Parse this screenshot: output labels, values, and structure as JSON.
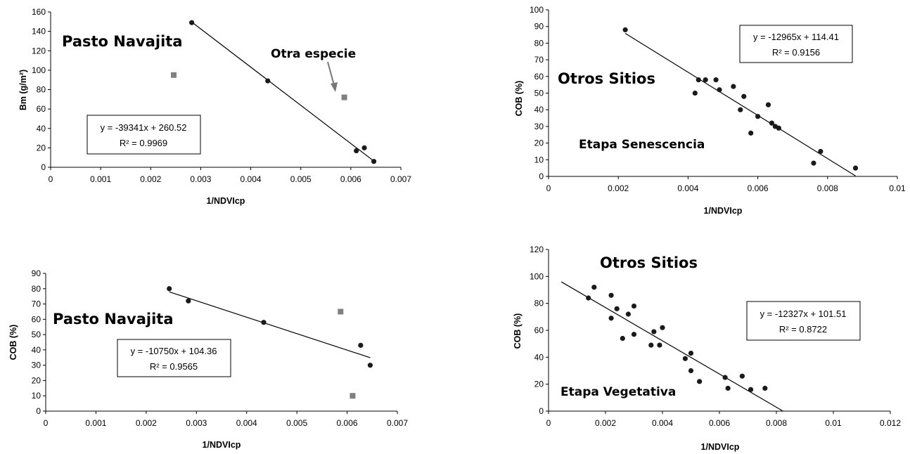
{
  "chart_data": [
    {
      "type": "scatter",
      "xlabel": "1/NDVIcp",
      "ylabel": "Bm (g/m²)",
      "xlim": [
        0,
        0.007
      ],
      "ylim": [
        0,
        160
      ],
      "xticks": [
        "0",
        "0.001",
        "0.002",
        "0.003",
        "0.004",
        "0.005",
        "0.006",
        "0.007"
      ],
      "yticks": [
        "0",
        "20",
        "40",
        "60",
        "80",
        "100",
        "120",
        "140",
        "160"
      ],
      "grid": false,
      "annotations": [
        "Pasto Navajita",
        "Otra especie"
      ],
      "equation": "y = -39341x + 260.52",
      "r2": "R² = 0.9969",
      "trendline": {
        "slope": -39341,
        "intercept": 260.52,
        "x_range": [
          0.00282,
          0.00646
        ]
      },
      "series": [
        {
          "marker": "circle",
          "x": [
            0.00282,
            0.00434,
            0.00611,
            0.00627,
            0.00646
          ],
          "y": [
            149,
            89,
            17,
            20,
            6
          ]
        },
        {
          "marker": "square",
          "x": [
            0.00246,
            0.00587
          ],
          "y": [
            95,
            72
          ]
        }
      ]
    },
    {
      "type": "scatter",
      "xlabel": "1/NDVIcp",
      "ylabel": "COB (%)",
      "xlim": [
        0,
        0.01
      ],
      "ylim": [
        0,
        100
      ],
      "xticks": [
        "0",
        "0.002",
        "0.004",
        "0.006",
        "0.008",
        "0.01"
      ],
      "yticks": [
        "0",
        "10",
        "20",
        "30",
        "40",
        "50",
        "60",
        "70",
        "80",
        "90",
        "100"
      ],
      "grid": false,
      "annotations": [
        "Otros Sitios",
        "Etapa Senescencia"
      ],
      "equation": "y = -12965x + 114.41",
      "r2": "R² = 0.9156",
      "trendline": {
        "slope": -12965,
        "intercept": 114.41,
        "x_range": [
          0.0022,
          0.0088
        ]
      },
      "series": [
        {
          "marker": "circle",
          "x": [
            0.0022,
            0.0042,
            0.0043,
            0.0045,
            0.0048,
            0.0049,
            0.0053,
            0.0055,
            0.0056,
            0.0058,
            0.006,
            0.0063,
            0.0064,
            0.0065,
            0.0066,
            0.0076,
            0.0078,
            0.0088
          ],
          "y": [
            88,
            50,
            58,
            58,
            58,
            52,
            54,
            40,
            48,
            26,
            36,
            43,
            32,
            30,
            29,
            8,
            15,
            5
          ]
        }
      ]
    },
    {
      "type": "scatter",
      "xlabel": "1/NDVIcp",
      "ylabel": "COB (%)",
      "xlim": [
        0,
        0.007
      ],
      "ylim": [
        0,
        90
      ],
      "xticks": [
        "0",
        "0.001",
        "0.002",
        "0.003",
        "0.004",
        "0.005",
        "0.006",
        "0.007"
      ],
      "yticks": [
        "0",
        "10",
        "20",
        "30",
        "40",
        "50",
        "60",
        "70",
        "80",
        "90"
      ],
      "grid": false,
      "annotations": [
        "Pasto Navajita"
      ],
      "equation": "y = -10750x + 104.36",
      "r2": "R² = 0.9565",
      "trendline": {
        "slope": -10750,
        "intercept": 104.36,
        "x_range": [
          0.00246,
          0.00646
        ]
      },
      "series": [
        {
          "marker": "circle",
          "x": [
            0.00246,
            0.00284,
            0.00434,
            0.00627,
            0.00646
          ],
          "y": [
            80,
            72,
            58,
            43,
            30
          ]
        },
        {
          "marker": "square",
          "x": [
            0.00587,
            0.00611
          ],
          "y": [
            65,
            10
          ]
        }
      ]
    },
    {
      "type": "scatter",
      "xlabel": "1/NDVIcp",
      "ylabel": "COB (%)",
      "xlim": [
        0,
        0.012
      ],
      "ylim": [
        0,
        120
      ],
      "xticks": [
        "0",
        "0.002",
        "0.004",
        "0.006",
        "0.008",
        "0.01",
        "0.012"
      ],
      "yticks": [
        "0",
        "20",
        "40",
        "60",
        "80",
        "100",
        "120"
      ],
      "grid": false,
      "annotations": [
        "Otros Sitios",
        "Etapa Vegetativa"
      ],
      "equation": "y = -12327x + 101.51",
      "r2": "R² = 0.8722",
      "trendline": {
        "slope": -12327,
        "intercept": 101.51,
        "x_range": [
          0.00045,
          0.00823
        ]
      },
      "series": [
        {
          "marker": "circle",
          "x": [
            0.0014,
            0.0016,
            0.0022,
            0.0022,
            0.0024,
            0.0026,
            0.0028,
            0.003,
            0.003,
            0.0036,
            0.0037,
            0.0039,
            0.004,
            0.0048,
            0.005,
            0.005,
            0.0053,
            0.0062,
            0.0063,
            0.0068,
            0.0071,
            0.0076
          ],
          "y": [
            84,
            92,
            86,
            69,
            76,
            54,
            72,
            78,
            57,
            49,
            59,
            49,
            62,
            39,
            43,
            30,
            22,
            25,
            17,
            26,
            16,
            17
          ]
        }
      ]
    }
  ]
}
